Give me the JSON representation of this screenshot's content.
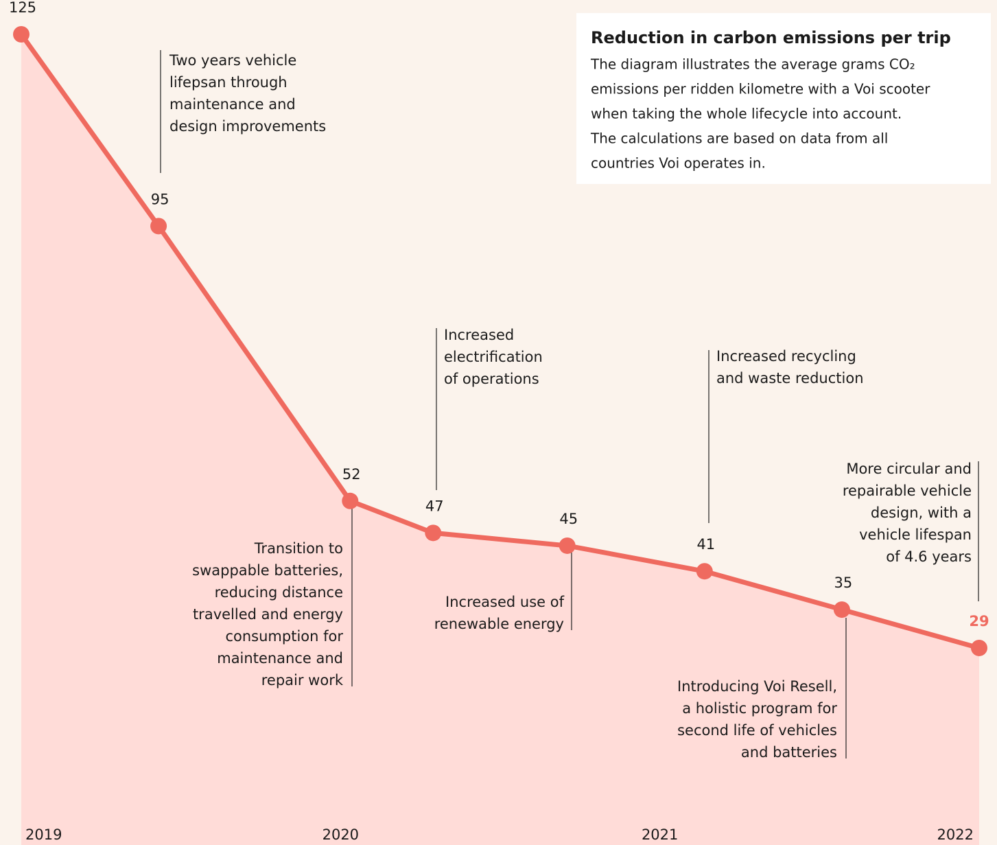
{
  "chart_data": {
    "type": "line",
    "title": "Reduction in carbon emissions per trip",
    "subtitle_lines": [
      "The diagram illustrates the average grams CO₂",
      "emissions per ridden kilometre with a Voi scooter",
      "when taking the whole lifecycle into account.",
      "The calculations are based on data from all",
      "countries Voi operates in."
    ],
    "x": [
      2019,
      2019.43,
      2020.03,
      2020.29,
      2020.71,
      2021.14,
      2021.57,
      2022
    ],
    "values": [
      125,
      95,
      52,
      47,
      45,
      41,
      35,
      29
    ],
    "color": "#ef6a5f",
    "area_color": "#ffdcd8",
    "xlim": [
      2019,
      2022
    ],
    "xticks": [
      2019,
      2020,
      2021,
      2022
    ],
    "ylim": [
      0,
      125
    ],
    "annotations": [
      {
        "lines": [
          "Two years vehicle",
          "lifepsan through",
          "maintenance and",
          "design improvements"
        ]
      },
      {
        "lines": [
          "Transition to",
          "swappable batteries,",
          "reducing distance",
          "travelled and energy",
          "consumption for",
          "maintenance and",
          "repair work"
        ]
      },
      {
        "lines": [
          "Increased",
          "electrification",
          "of operations"
        ]
      },
      {
        "lines": [
          "Increased use of",
          "renewable energy"
        ]
      },
      {
        "lines": [
          "Increased recycling",
          "and waste reduction"
        ]
      },
      {
        "lines": [
          "Introducing Voi Resell,",
          "a holistic program for",
          "second life of vehicles",
          "and batteries"
        ]
      },
      {
        "lines": [
          "More circular and",
          "repairable vehicle",
          "design, with a",
          "vehicle lifespan",
          "of 4.6 years"
        ]
      }
    ]
  }
}
